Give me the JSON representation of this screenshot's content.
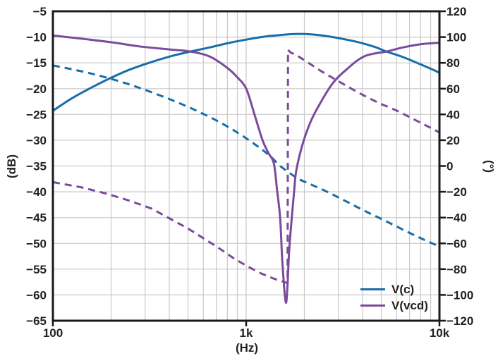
{
  "colors": {
    "blue": "#176ea8",
    "purple": "#7a4b9c",
    "text": "#231f20",
    "grid": "#c9c9c9",
    "frame": "#1a1a1a",
    "background": "#ffffff"
  },
  "chart_data": {
    "type": "line",
    "title": "",
    "xlabel": "(Hz)",
    "ylabel_left": "(dB)",
    "ylabel_right": "(°)",
    "x_scale": "log",
    "x_range": [
      100,
      10000
    ],
    "y_left_range": [
      -65,
      -5
    ],
    "y_right_range": [
      -120,
      120
    ],
    "grid": true,
    "x_ticks": [
      {
        "value": 100,
        "label": "100"
      },
      {
        "value": 1000,
        "label": "1k"
      },
      {
        "value": 10000,
        "label": "10k"
      }
    ],
    "x_gridlines": [
      200,
      300,
      400,
      500,
      600,
      700,
      800,
      900,
      1000,
      2000,
      3000,
      4000,
      5000,
      6000,
      7000,
      8000,
      9000
    ],
    "y_gridlines_db": [
      -10,
      -15,
      -20,
      -25,
      -30,
      -35,
      -40,
      -45,
      -50,
      -55,
      -60
    ],
    "y_left_ticks": [
      {
        "value": -5,
        "label": "−5"
      },
      {
        "value": -10,
        "label": "−10"
      },
      {
        "value": -15,
        "label": "−15"
      },
      {
        "value": -20,
        "label": "−20"
      },
      {
        "value": -25,
        "label": "−25"
      },
      {
        "value": -30,
        "label": "−30"
      },
      {
        "value": -35,
        "label": "−35"
      },
      {
        "value": -40,
        "label": "−40"
      },
      {
        "value": -45,
        "label": "−45"
      },
      {
        "value": -50,
        "label": "−50"
      },
      {
        "value": -55,
        "label": "−55"
      },
      {
        "value": -60,
        "label": "−60"
      },
      {
        "value": -65,
        "label": "−65"
      }
    ],
    "y_right_ticks": [
      {
        "value": 120,
        "label": "120"
      },
      {
        "value": 100,
        "label": "100"
      },
      {
        "value": 80,
        "label": "80"
      },
      {
        "value": 60,
        "label": "60"
      },
      {
        "value": 40,
        "label": "40"
      },
      {
        "value": 20,
        "label": "20"
      },
      {
        "value": 0,
        "label": "0"
      },
      {
        "value": -20,
        "label": "−20"
      },
      {
        "value": -40,
        "label": "−40"
      },
      {
        "value": -60,
        "label": "−60"
      },
      {
        "value": -80,
        "label": "−80"
      },
      {
        "value": -100,
        "label": "−100"
      },
      {
        "value": -120,
        "label": "−120"
      }
    ],
    "legend": {
      "position": "bottom-right",
      "entries": [
        {
          "label": "V(c)",
          "color": "#176ea8"
        },
        {
          "label": "V(vcd)",
          "color": "#7a4b9c"
        }
      ]
    },
    "series": [
      {
        "name": "V(c) phase",
        "axis": "right",
        "style": "dashed",
        "smooth": true,
        "color": "#176ea8",
        "unit": "deg",
        "points": [
          [
            100,
            78
          ],
          [
            135,
            74
          ],
          [
            180,
            69.5
          ],
          [
            240,
            64
          ],
          [
            320,
            57.5
          ],
          [
            430,
            50
          ],
          [
            570,
            42
          ],
          [
            760,
            32.5
          ],
          [
            1000,
            21.5
          ],
          [
            1300,
            9
          ],
          [
            1500,
            0
          ],
          [
            1820,
            -9
          ],
          [
            2100,
            -13.5
          ],
          [
            2500,
            -18.5
          ],
          [
            3200,
            -26.5
          ],
          [
            4000,
            -34
          ],
          [
            5000,
            -41
          ],
          [
            6300,
            -48.5
          ],
          [
            8000,
            -56
          ],
          [
            10000,
            -62.5
          ]
        ]
      },
      {
        "name": "V(vcd) phase",
        "axis": "right",
        "style": "dashed",
        "smooth": false,
        "color": "#7a4b9c",
        "unit": "deg",
        "points": [
          [
            100,
            -12.5
          ],
          [
            140,
            -16.5
          ],
          [
            190,
            -21.5
          ],
          [
            250,
            -27
          ],
          [
            324,
            -33
          ],
          [
            405,
            -41
          ],
          [
            500,
            -48.5
          ],
          [
            600,
            -56
          ],
          [
            720,
            -63.5
          ],
          [
            860,
            -71.5
          ],
          [
            1020,
            -78
          ],
          [
            1200,
            -83.5
          ],
          [
            1400,
            -87.5
          ],
          [
            1600,
            -90.3
          ],
          [
            1638,
            -91
          ],
          [
            1646,
            90
          ],
          [
            1700,
            88
          ],
          [
            1820,
            86
          ],
          [
            2100,
            80
          ],
          [
            2450,
            73.5
          ],
          [
            2900,
            67
          ],
          [
            3500,
            60
          ],
          [
            4200,
            53.5
          ],
          [
            5000,
            48
          ],
          [
            5600,
            45
          ],
          [
            6300,
            41.5
          ],
          [
            7200,
            37
          ],
          [
            8760,
            30.5
          ],
          [
            10000,
            26
          ]
        ]
      },
      {
        "name": "V(c) magnitude",
        "axis": "left",
        "style": "solid",
        "smooth": true,
        "color": "#176ea8",
        "unit": "dB",
        "points": [
          [
            100,
            -24.3
          ],
          [
            125,
            -21.9
          ],
          [
            160,
            -19.7
          ],
          [
            200,
            -17.9
          ],
          [
            250,
            -16.3
          ],
          [
            320,
            -14.9
          ],
          [
            400,
            -13.8
          ],
          [
            515,
            -12.8
          ],
          [
            650,
            -12.0
          ],
          [
            800,
            -11.2
          ],
          [
            1000,
            -10.5
          ],
          [
            1250,
            -9.9
          ],
          [
            1500,
            -9.6
          ],
          [
            1800,
            -9.4
          ],
          [
            2200,
            -9.5
          ],
          [
            2700,
            -9.9
          ],
          [
            3300,
            -10.5
          ],
          [
            4000,
            -11.2
          ],
          [
            4700,
            -12.0
          ],
          [
            5320,
            -12.8
          ],
          [
            6500,
            -13.9
          ],
          [
            8000,
            -15.3
          ],
          [
            10000,
            -16.9
          ]
        ]
      },
      {
        "name": "V(vcd) magnitude",
        "axis": "left",
        "style": "solid",
        "smooth": true,
        "color": "#7a4b9c",
        "unit": "dB",
        "points": [
          [
            100,
            -9.7
          ],
          [
            140,
            -10.3
          ],
          [
            200,
            -11.0
          ],
          [
            280,
            -11.8
          ],
          [
            400,
            -12.4
          ],
          [
            515,
            -12.8
          ],
          [
            650,
            -13.8
          ],
          [
            800,
            -16.0
          ],
          [
            900,
            -17.8
          ],
          [
            1000,
            -20.0
          ],
          [
            1100,
            -24.8
          ],
          [
            1215,
            -30.0
          ],
          [
            1300,
            -32.4
          ],
          [
            1390,
            -34.5
          ],
          [
            1445,
            -39.7
          ],
          [
            1500,
            -45.2
          ],
          [
            1540,
            -53.8
          ],
          [
            1610,
            -61.5
          ],
          [
            1665,
            -52.0
          ],
          [
            1700,
            -47.5
          ],
          [
            1772,
            -39.7
          ],
          [
            1815,
            -36.0
          ],
          [
            1950,
            -31.0
          ],
          [
            2150,
            -26.5
          ],
          [
            2400,
            -23.0
          ],
          [
            2800,
            -19.0
          ],
          [
            3300,
            -16.3
          ],
          [
            4100,
            -13.7
          ],
          [
            5320,
            -12.8
          ],
          [
            6500,
            -12.0
          ],
          [
            8000,
            -11.4
          ],
          [
            10000,
            -11.1
          ]
        ]
      }
    ]
  }
}
